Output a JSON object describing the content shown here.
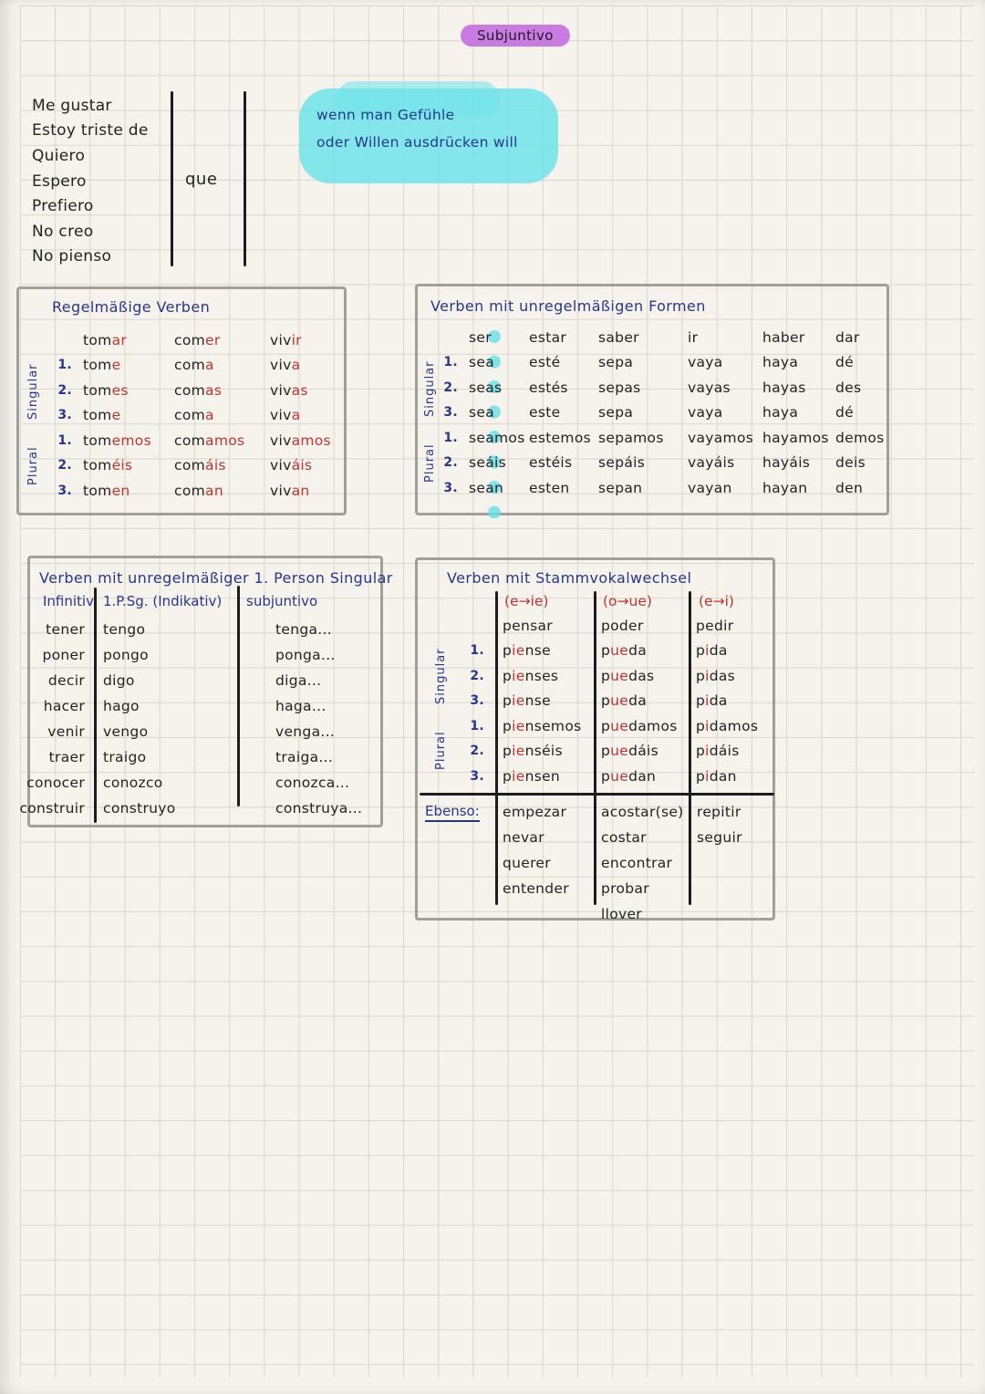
{
  "page": {
    "title": "Subjuntivo"
  },
  "trigger_list": {
    "items": [
      "Me gustar",
      "Estoy triste de",
      "Quiero",
      "Espero",
      "Prefiero",
      "No creo",
      "No pienso"
    ],
    "connector": "que"
  },
  "note": {
    "line1": "wenn man Gefühle",
    "line2": "oder Willen ausdrücken will"
  },
  "labels": {
    "singular": "Singular",
    "plural": "Plural"
  },
  "regular": {
    "title": "Regelmäßige Verben",
    "headers": [
      [
        {
          "t": "tom"
        },
        {
          "t": "ar",
          "c": "r"
        }
      ],
      [
        {
          "t": "com"
        },
        {
          "t": "er",
          "c": "r"
        }
      ],
      [
        {
          "t": "viv"
        },
        {
          "t": "ir",
          "c": "r"
        }
      ]
    ],
    "rows": [
      {
        "n": "1.",
        "c": [
          [
            {
              "t": "tom"
            },
            {
              "t": "e",
              "c": "r"
            }
          ],
          [
            {
              "t": "com"
            },
            {
              "t": "a",
              "c": "r"
            }
          ],
          [
            {
              "t": "viv"
            },
            {
              "t": "a",
              "c": "r"
            }
          ]
        ]
      },
      {
        "n": "2.",
        "c": [
          [
            {
              "t": "tom"
            },
            {
              "t": "es",
              "c": "r"
            }
          ],
          [
            {
              "t": "com"
            },
            {
              "t": "as",
              "c": "r"
            }
          ],
          [
            {
              "t": "viv"
            },
            {
              "t": "as",
              "c": "r"
            }
          ]
        ]
      },
      {
        "n": "3.",
        "c": [
          [
            {
              "t": "tom"
            },
            {
              "t": "e",
              "c": "r"
            }
          ],
          [
            {
              "t": "com"
            },
            {
              "t": "a",
              "c": "r"
            }
          ],
          [
            {
              "t": "viv"
            },
            {
              "t": "a",
              "c": "r"
            }
          ]
        ]
      },
      {
        "n": "1.",
        "c": [
          [
            {
              "t": "tom"
            },
            {
              "t": "emos",
              "c": "r"
            }
          ],
          [
            {
              "t": "com"
            },
            {
              "t": "amos",
              "c": "r"
            }
          ],
          [
            {
              "t": "viv"
            },
            {
              "t": "amos",
              "c": "r"
            }
          ]
        ]
      },
      {
        "n": "2.",
        "c": [
          [
            {
              "t": "tom"
            },
            {
              "t": "éis",
              "c": "r"
            }
          ],
          [
            {
              "t": "com"
            },
            {
              "t": "áis",
              "c": "r"
            }
          ],
          [
            {
              "t": "viv"
            },
            {
              "t": "áis",
              "c": "r"
            }
          ]
        ]
      },
      {
        "n": "3.",
        "c": [
          [
            {
              "t": "tom"
            },
            {
              "t": "en",
              "c": "r"
            }
          ],
          [
            {
              "t": "com"
            },
            {
              "t": "an",
              "c": "r"
            }
          ],
          [
            {
              "t": "viv"
            },
            {
              "t": "an",
              "c": "r"
            }
          ]
        ]
      }
    ]
  },
  "irregular": {
    "title": "Verben mit unregelmäßigen Formen",
    "headers": [
      "ser",
      "estar",
      "saber",
      "ir",
      "haber",
      "dar"
    ],
    "rows": [
      {
        "n": "1.",
        "c": [
          "sea",
          "esté",
          "sepa",
          "vaya",
          "haya",
          "dé"
        ]
      },
      {
        "n": "2.",
        "c": [
          "seas",
          "estés",
          "sepas",
          "vayas",
          "hayas",
          "des"
        ]
      },
      {
        "n": "3.",
        "c": [
          "sea",
          "este",
          "sepa",
          "vaya",
          "haya",
          "dé"
        ]
      },
      {
        "n": "1.",
        "c": [
          "seamos",
          "estemos",
          "sepamos",
          "vayamos",
          "hayamos",
          "demos"
        ]
      },
      {
        "n": "2.",
        "c": [
          "seáis",
          "estéis",
          "sepáis",
          "vayáis",
          "hayáis",
          "deis"
        ]
      },
      {
        "n": "3.",
        "c": [
          "sean",
          "esten",
          "sepan",
          "vayan",
          "hayan",
          "den"
        ]
      }
    ]
  },
  "first_person": {
    "title": "Verben mit unregelmäßiger 1. Person Singular",
    "col1": "Infinitiv",
    "col2": "1.P.Sg. (Indikativ)",
    "col3": "subjuntivo",
    "rows": [
      {
        "inf": "tener",
        "ind": "tengo",
        "subj": "tenga..."
      },
      {
        "inf": "poner",
        "ind": "pongo",
        "subj": "ponga..."
      },
      {
        "inf": "decir",
        "ind": "digo",
        "subj": "diga..."
      },
      {
        "inf": "hacer",
        "ind": "hago",
        "subj": "haga..."
      },
      {
        "inf": "venir",
        "ind": "vengo",
        "subj": "venga..."
      },
      {
        "inf": "traer",
        "ind": "traigo",
        "subj": "traiga..."
      },
      {
        "inf": "conocer",
        "ind": "conozco",
        "subj": "conozca..."
      },
      {
        "inf": "construir",
        "ind": "construyo",
        "subj": "construya..."
      }
    ]
  },
  "stem_change": {
    "title": "Verben mit Stammvokalwechsel",
    "headers": [
      "(e→ie)",
      "(o→ue)",
      "(e→i)"
    ],
    "infinitives": [
      "pensar",
      "poder",
      "pedir"
    ],
    "rows": [
      {
        "n": "1.",
        "c": [
          [
            {
              "t": "p"
            },
            {
              "t": "ie",
              "c": "r"
            },
            {
              "t": "nse"
            }
          ],
          [
            {
              "t": "p"
            },
            {
              "t": "ue",
              "c": "r"
            },
            {
              "t": "da"
            }
          ],
          [
            {
              "t": "p"
            },
            {
              "t": "i",
              "c": "r"
            },
            {
              "t": "da"
            }
          ]
        ]
      },
      {
        "n": "2.",
        "c": [
          [
            {
              "t": "p"
            },
            {
              "t": "ie",
              "c": "r"
            },
            {
              "t": "nses"
            }
          ],
          [
            {
              "t": "p"
            },
            {
              "t": "ue",
              "c": "r"
            },
            {
              "t": "das"
            }
          ],
          [
            {
              "t": "p"
            },
            {
              "t": "i",
              "c": "r"
            },
            {
              "t": "das"
            }
          ]
        ]
      },
      {
        "n": "3.",
        "c": [
          [
            {
              "t": "p"
            },
            {
              "t": "ie",
              "c": "r"
            },
            {
              "t": "nse"
            }
          ],
          [
            {
              "t": "p"
            },
            {
              "t": "ue",
              "c": "r"
            },
            {
              "t": "da"
            }
          ],
          [
            {
              "t": "p"
            },
            {
              "t": "i",
              "c": "r"
            },
            {
              "t": "da"
            }
          ]
        ]
      },
      {
        "n": "1.",
        "c": [
          [
            {
              "t": "p"
            },
            {
              "t": "ie",
              "c": "r"
            },
            {
              "t": "nsemos"
            }
          ],
          [
            {
              "t": "p"
            },
            {
              "t": "ue",
              "c": "r"
            },
            {
              "t": "damos"
            }
          ],
          [
            {
              "t": "p"
            },
            {
              "t": "i",
              "c": "r"
            },
            {
              "t": "damos"
            }
          ]
        ]
      },
      {
        "n": "2.",
        "c": [
          [
            {
              "t": "p"
            },
            {
              "t": "ie",
              "c": "r"
            },
            {
              "t": "nséis"
            }
          ],
          [
            {
              "t": "p"
            },
            {
              "t": "ue",
              "c": "r"
            },
            {
              "t": "dáis"
            }
          ],
          [
            {
              "t": "p"
            },
            {
              "t": "i",
              "c": "r"
            },
            {
              "t": "dáis"
            }
          ]
        ]
      },
      {
        "n": "3.",
        "c": [
          [
            {
              "t": "p"
            },
            {
              "t": "ie",
              "c": "r"
            },
            {
              "t": "nsen"
            }
          ],
          [
            {
              "t": "p"
            },
            {
              "t": "ue",
              "c": "r"
            },
            {
              "t": "dan"
            }
          ],
          [
            {
              "t": "p"
            },
            {
              "t": "i",
              "c": "r"
            },
            {
              "t": "dan"
            }
          ]
        ]
      }
    ],
    "ebenso_label": "Ebenso:",
    "ebenso": [
      [
        "empezar",
        "nevar",
        "querer",
        "entender"
      ],
      [
        "acostar(se)",
        "costar",
        "encontrar",
        "probar",
        "llover"
      ],
      [
        "repitir",
        "seguir"
      ]
    ]
  },
  "colors": {
    "ink": "#232323",
    "blue": "#27368f",
    "red": "#c03430",
    "purple": "#c97be2",
    "cyan": "#6fe3ea",
    "border": "#a0a09a"
  }
}
